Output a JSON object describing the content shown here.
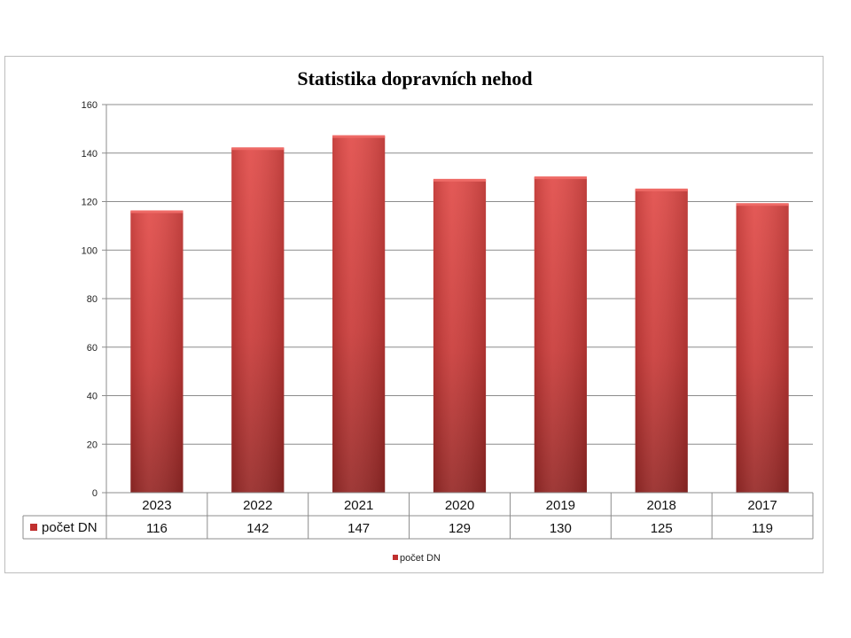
{
  "chart_data": {
    "type": "bar",
    "title": "Statistika dopravních nehod",
    "categories": [
      "2023",
      "2022",
      "2021",
      "2020",
      "2019",
      "2018",
      "2017"
    ],
    "series": [
      {
        "name": "počet DN",
        "values": [
          116,
          142,
          147,
          129,
          130,
          125,
          119
        ],
        "color": "#c0302f"
      }
    ],
    "ylim": [
      0,
      160
    ],
    "yticks": [
      0,
      20,
      40,
      60,
      80,
      100,
      120,
      140,
      160
    ],
    "grid": true,
    "data_table": true,
    "legend_position": "bottom"
  }
}
